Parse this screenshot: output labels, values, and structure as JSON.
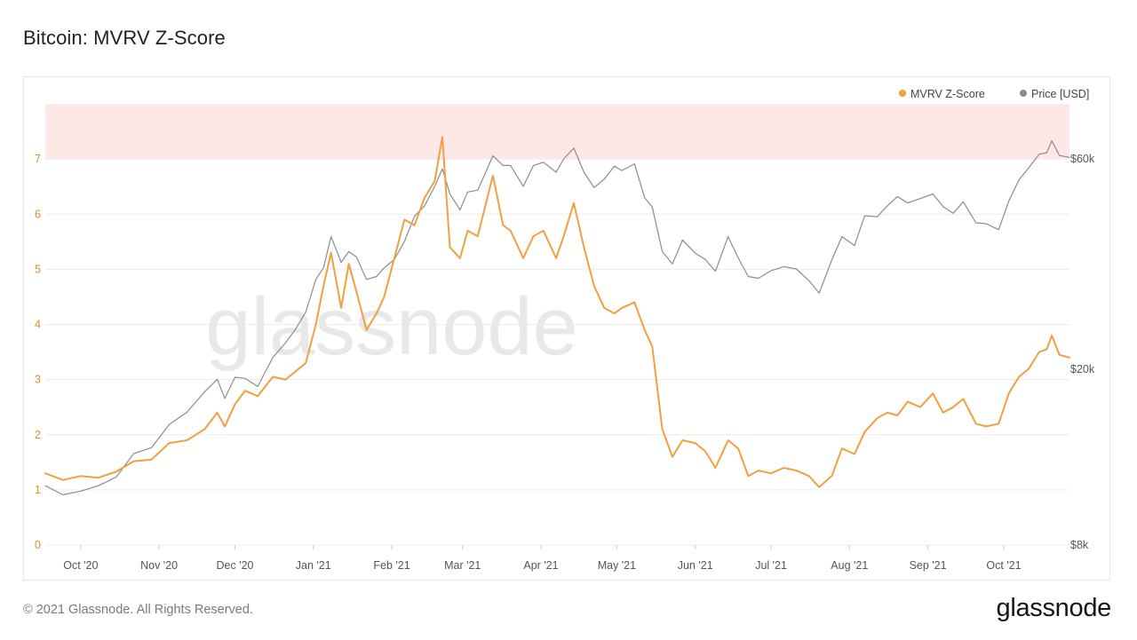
{
  "header": {
    "title": "Bitcoin: MVRV Z-Score"
  },
  "footer": {
    "copyright": "© 2021 Glassnode. All Rights Reserved.",
    "logo_text": "glassnode"
  },
  "watermark": "glassnode",
  "colors": {
    "zscore": "#f0a040",
    "price": "#8c8c8c",
    "band": "#fde8e6",
    "zscore_axis_text": "#d98c2e",
    "axis_text": "#555555"
  },
  "chart_data": {
    "type": "line",
    "title": "Bitcoin: MVRV Z-Score",
    "legend": {
      "placement": "top-right",
      "entries": [
        "MVRV Z-Score",
        "Price [USD]"
      ]
    },
    "x_tick_labels": [
      "Oct '20",
      "Nov '20",
      "Dec '20",
      "Jan '21",
      "Feb '21",
      "Mar '21",
      "Apr '21",
      "May '21",
      "Jun '21",
      "Jul '21",
      "Aug '21",
      "Sep '21",
      "Oct '21"
    ],
    "x_ticks_dates": [
      "2020-10-01",
      "2020-11-01",
      "2020-12-01",
      "2021-01-01",
      "2021-02-01",
      "2021-03-01",
      "2021-04-01",
      "2021-05-01",
      "2021-06-01",
      "2021-07-01",
      "2021-08-01",
      "2021-09-01",
      "2021-10-01"
    ],
    "x_range": [
      "2020-09-17",
      "2021-10-27"
    ],
    "y_left": {
      "ticks": [
        0,
        1,
        2,
        3,
        4,
        5,
        6,
        7
      ],
      "range": [
        0,
        8
      ],
      "label": ""
    },
    "y_right": {
      "scale": "log",
      "ticks": [
        8000,
        20000,
        60000
      ],
      "tick_labels": [
        "$8k",
        "$20k",
        "$60k"
      ],
      "label": ""
    },
    "bands": [
      {
        "axis": "left",
        "from": 7,
        "to": 8,
        "color": "#fde8e6"
      }
    ],
    "grid": true,
    "series": [
      {
        "name": "MVRV Z-Score",
        "axis": "left",
        "color": "#f0a040",
        "points": [
          [
            "2020-09-17",
            1.3
          ],
          [
            "2020-09-24",
            1.18
          ],
          [
            "2020-10-01",
            1.25
          ],
          [
            "2020-10-08",
            1.22
          ],
          [
            "2020-10-15",
            1.33
          ],
          [
            "2020-10-22",
            1.52
          ],
          [
            "2020-10-29",
            1.55
          ],
          [
            "2020-11-05",
            1.85
          ],
          [
            "2020-11-12",
            1.9
          ],
          [
            "2020-11-19",
            2.1
          ],
          [
            "2020-11-24",
            2.4
          ],
          [
            "2020-11-27",
            2.15
          ],
          [
            "2020-12-01",
            2.55
          ],
          [
            "2020-12-05",
            2.8
          ],
          [
            "2020-12-10",
            2.7
          ],
          [
            "2020-12-16",
            3.05
          ],
          [
            "2020-12-21",
            3.0
          ],
          [
            "2020-12-25",
            3.15
          ],
          [
            "2020-12-29",
            3.3
          ],
          [
            "2021-01-02",
            4.0
          ],
          [
            "2021-01-05",
            4.7
          ],
          [
            "2021-01-08",
            5.3
          ],
          [
            "2021-01-12",
            4.3
          ],
          [
            "2021-01-15",
            5.1
          ],
          [
            "2021-01-18",
            4.6
          ],
          [
            "2021-01-22",
            3.9
          ],
          [
            "2021-01-26",
            4.2
          ],
          [
            "2021-01-29",
            4.5
          ],
          [
            "2021-02-02",
            5.2
          ],
          [
            "2021-02-06",
            5.9
          ],
          [
            "2021-02-10",
            5.8
          ],
          [
            "2021-02-14",
            6.3
          ],
          [
            "2021-02-18",
            6.6
          ],
          [
            "2021-02-21",
            7.4
          ],
          [
            "2021-02-24",
            5.4
          ],
          [
            "2021-02-28",
            5.2
          ],
          [
            "2021-03-03",
            5.7
          ],
          [
            "2021-03-07",
            5.6
          ],
          [
            "2021-03-13",
            6.7
          ],
          [
            "2021-03-17",
            5.8
          ],
          [
            "2021-03-20",
            5.7
          ],
          [
            "2021-03-25",
            5.2
          ],
          [
            "2021-03-29",
            5.6
          ],
          [
            "2021-04-02",
            5.7
          ],
          [
            "2021-04-07",
            5.2
          ],
          [
            "2021-04-10",
            5.6
          ],
          [
            "2021-04-14",
            6.2
          ],
          [
            "2021-04-18",
            5.4
          ],
          [
            "2021-04-22",
            4.7
          ],
          [
            "2021-04-26",
            4.3
          ],
          [
            "2021-04-30",
            4.2
          ],
          [
            "2021-05-03",
            4.3
          ],
          [
            "2021-05-08",
            4.4
          ],
          [
            "2021-05-12",
            3.9
          ],
          [
            "2021-05-15",
            3.6
          ],
          [
            "2021-05-19",
            2.1
          ],
          [
            "2021-05-23",
            1.6
          ],
          [
            "2021-05-27",
            1.9
          ],
          [
            "2021-06-01",
            1.85
          ],
          [
            "2021-06-05",
            1.7
          ],
          [
            "2021-06-09",
            1.4
          ],
          [
            "2021-06-14",
            1.9
          ],
          [
            "2021-06-18",
            1.75
          ],
          [
            "2021-06-22",
            1.25
          ],
          [
            "2021-06-26",
            1.35
          ],
          [
            "2021-07-01",
            1.3
          ],
          [
            "2021-07-06",
            1.4
          ],
          [
            "2021-07-11",
            1.35
          ],
          [
            "2021-07-16",
            1.25
          ],
          [
            "2021-07-20",
            1.05
          ],
          [
            "2021-07-25",
            1.25
          ],
          [
            "2021-07-29",
            1.75
          ],
          [
            "2021-08-03",
            1.65
          ],
          [
            "2021-08-07",
            2.05
          ],
          [
            "2021-08-12",
            2.3
          ],
          [
            "2021-08-16",
            2.4
          ],
          [
            "2021-08-20",
            2.35
          ],
          [
            "2021-08-24",
            2.6
          ],
          [
            "2021-08-29",
            2.5
          ],
          [
            "2021-09-03",
            2.75
          ],
          [
            "2021-09-07",
            2.4
          ],
          [
            "2021-09-11",
            2.5
          ],
          [
            "2021-09-15",
            2.65
          ],
          [
            "2021-09-20",
            2.2
          ],
          [
            "2021-09-24",
            2.15
          ],
          [
            "2021-09-29",
            2.2
          ],
          [
            "2021-10-03",
            2.75
          ],
          [
            "2021-10-07",
            3.05
          ],
          [
            "2021-10-11",
            3.2
          ],
          [
            "2021-10-15",
            3.5
          ],
          [
            "2021-10-18",
            3.55
          ],
          [
            "2021-10-20",
            3.8
          ],
          [
            "2021-10-23",
            3.45
          ],
          [
            "2021-10-27",
            3.4
          ]
        ]
      },
      {
        "name": "Price [USD]",
        "axis": "right",
        "color": "#8c8c8c",
        "points": [
          [
            "2020-09-17",
            10900
          ],
          [
            "2020-09-24",
            10400
          ],
          [
            "2020-10-01",
            10600
          ],
          [
            "2020-10-08",
            10900
          ],
          [
            "2020-10-15",
            11400
          ],
          [
            "2020-10-22",
            12900
          ],
          [
            "2020-10-29",
            13300
          ],
          [
            "2020-11-05",
            15000
          ],
          [
            "2020-11-12",
            16000
          ],
          [
            "2020-11-19",
            17800
          ],
          [
            "2020-11-24",
            19000
          ],
          [
            "2020-11-27",
            17200
          ],
          [
            "2020-12-01",
            19200
          ],
          [
            "2020-12-05",
            19100
          ],
          [
            "2020-12-10",
            18300
          ],
          [
            "2020-12-16",
            21300
          ],
          [
            "2020-12-21",
            23000
          ],
          [
            "2020-12-25",
            24700
          ],
          [
            "2020-12-29",
            27000
          ],
          [
            "2021-01-02",
            32000
          ],
          [
            "2021-01-05",
            34000
          ],
          [
            "2021-01-08",
            40000
          ],
          [
            "2021-01-12",
            35000
          ],
          [
            "2021-01-15",
            37000
          ],
          [
            "2021-01-18",
            36000
          ],
          [
            "2021-01-22",
            32000
          ],
          [
            "2021-01-26",
            32500
          ],
          [
            "2021-01-29",
            34000
          ],
          [
            "2021-02-02",
            35500
          ],
          [
            "2021-02-06",
            39000
          ],
          [
            "2021-02-10",
            44500
          ],
          [
            "2021-02-14",
            47000
          ],
          [
            "2021-02-18",
            52000
          ],
          [
            "2021-02-21",
            57000
          ],
          [
            "2021-02-24",
            50000
          ],
          [
            "2021-02-28",
            46000
          ],
          [
            "2021-03-03",
            50500
          ],
          [
            "2021-03-07",
            51000
          ],
          [
            "2021-03-13",
            61000
          ],
          [
            "2021-03-17",
            58000
          ],
          [
            "2021-03-20",
            58000
          ],
          [
            "2021-03-25",
            52000
          ],
          [
            "2021-03-29",
            58000
          ],
          [
            "2021-04-02",
            59000
          ],
          [
            "2021-04-07",
            56000
          ],
          [
            "2021-04-10",
            60000
          ],
          [
            "2021-04-14",
            63500
          ],
          [
            "2021-04-18",
            56000
          ],
          [
            "2021-04-22",
            51700
          ],
          [
            "2021-04-26",
            54000
          ],
          [
            "2021-04-30",
            57800
          ],
          [
            "2021-05-03",
            56500
          ],
          [
            "2021-05-08",
            58500
          ],
          [
            "2021-05-12",
            49000
          ],
          [
            "2021-05-15",
            46700
          ],
          [
            "2021-05-19",
            37000
          ],
          [
            "2021-05-23",
            34700
          ],
          [
            "2021-05-27",
            39300
          ],
          [
            "2021-06-01",
            36700
          ],
          [
            "2021-06-05",
            35500
          ],
          [
            "2021-06-09",
            33400
          ],
          [
            "2021-06-14",
            40000
          ],
          [
            "2021-06-18",
            35800
          ],
          [
            "2021-06-22",
            32500
          ],
          [
            "2021-06-26",
            32200
          ],
          [
            "2021-07-01",
            33500
          ],
          [
            "2021-07-06",
            34200
          ],
          [
            "2021-07-11",
            33800
          ],
          [
            "2021-07-16",
            31800
          ],
          [
            "2021-07-20",
            29800
          ],
          [
            "2021-07-25",
            35400
          ],
          [
            "2021-07-29",
            40000
          ],
          [
            "2021-08-03",
            38200
          ],
          [
            "2021-08-07",
            44600
          ],
          [
            "2021-08-12",
            44400
          ],
          [
            "2021-08-16",
            47000
          ],
          [
            "2021-08-20",
            49300
          ],
          [
            "2021-08-24",
            47700
          ],
          [
            "2021-08-29",
            48800
          ],
          [
            "2021-09-03",
            50000
          ],
          [
            "2021-09-07",
            46800
          ],
          [
            "2021-09-11",
            45200
          ],
          [
            "2021-09-15",
            48000
          ],
          [
            "2021-09-20",
            43000
          ],
          [
            "2021-09-24",
            42800
          ],
          [
            "2021-09-29",
            41500
          ],
          [
            "2021-10-03",
            48200
          ],
          [
            "2021-10-07",
            53800
          ],
          [
            "2021-10-11",
            57400
          ],
          [
            "2021-10-15",
            61500
          ],
          [
            "2021-10-18",
            62000
          ],
          [
            "2021-10-20",
            66000
          ],
          [
            "2021-10-23",
            61100
          ],
          [
            "2021-10-27",
            60500
          ]
        ]
      }
    ]
  }
}
